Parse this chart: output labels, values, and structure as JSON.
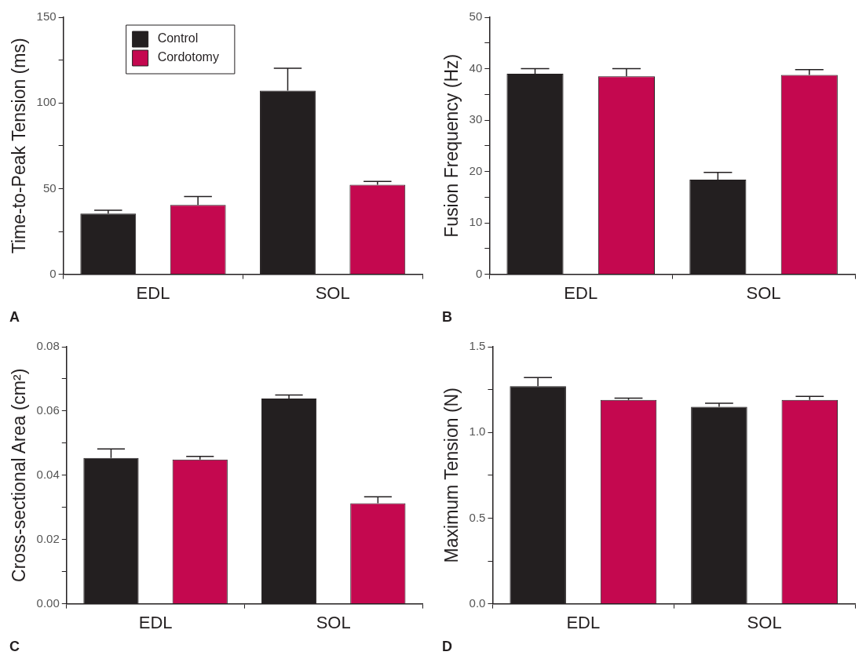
{
  "chart_data": [
    {
      "type": "bar",
      "ylabel": "Time-to-Peak Tension (ms)",
      "categories": [
        "EDL",
        "SOL"
      ],
      "legend": "top left",
      "annotations": [
        "A"
      ],
      "ylim": [
        0,
        150
      ],
      "yticks": [
        0,
        {
          "value": 25,
          "label": null
        },
        50,
        {
          "value": 75,
          "label": null
        },
        100,
        {
          "value": 125,
          "label": null
        },
        150
      ],
      "series": [
        {
          "name": "Control",
          "color": "#231f20",
          "values": [
            35.4,
            107.2
          ],
          "errors": [
            2,
            13
          ]
        },
        {
          "name": "Cordotomy",
          "color": "#c4084f",
          "values": [
            40.4,
            52.2
          ],
          "errors": [
            5,
            2
          ]
        }
      ]
    },
    {
      "type": "bar",
      "ylabel": "Fusion Frequency (Hz)",
      "categories": [
        "EDL",
        "SOL"
      ],
      "annotations": [
        "B"
      ],
      "ylim": [
        0,
        50
      ],
      "yticks": [
        0,
        {
          "value": 5,
          "label": null
        },
        10,
        {
          "value": 15,
          "label": null
        },
        20,
        {
          "value": 25,
          "label": null
        },
        30,
        {
          "value": 35,
          "label": null
        },
        40,
        {
          "value": 45,
          "label": null
        },
        50
      ],
      "series": [
        {
          "color": "#231f20",
          "values": [
            39.0,
            18.4
          ],
          "errors": [
            1,
            1.4
          ]
        },
        {
          "color": "#c4084f",
          "values": [
            38.5,
            38.8
          ],
          "errors": [
            1.5,
            1
          ]
        }
      ]
    },
    {
      "type": "bar",
      "ylabel": "Cross-sectional Area (cm²)",
      "categories": [
        "EDL",
        "SOL"
      ],
      "annotations": [
        "C"
      ],
      "ylim": [
        0,
        0.08
      ],
      "yticks": [
        {
          "value": 0,
          "label": "0.00"
        },
        {
          "value": 0.01,
          "label": null
        },
        0.02,
        {
          "value": 0.03,
          "label": null
        },
        0.04,
        {
          "value": 0.05,
          "label": null
        },
        0.06,
        {
          "value": 0.07,
          "label": null
        },
        0.08
      ],
      "series": [
        {
          "color": "#231f20",
          "values": [
            0.0454,
            0.0639
          ],
          "errors": [
            0.0028,
            0.0011
          ]
        },
        {
          "color": "#c4084f",
          "values": [
            0.0449,
            0.0313
          ],
          "errors": [
            0.001,
            0.002
          ]
        }
      ]
    },
    {
      "type": "bar",
      "ylabel": "Maximum Tension (N)",
      "categories": [
        "EDL",
        "SOL"
      ],
      "annotations": [
        "D"
      ],
      "ylim": [
        0,
        1.5
      ],
      "yticks": [
        {
          "value": 0,
          "label": "0.0"
        },
        {
          "value": 0.25,
          "label": null
        },
        0.5,
        {
          "value": 0.75,
          "label": null
        },
        {
          "value": 1,
          "label": "1.0"
        },
        {
          "value": 1.25,
          "label": null
        },
        1.5
      ],
      "series": [
        {
          "color": "#231f20",
          "values": [
            1.27,
            1.15
          ],
          "errors": [
            0.05,
            0.02
          ]
        },
        {
          "color": "#c4084f",
          "values": [
            1.19,
            1.19
          ],
          "errors": [
            0.01,
            0.02
          ]
        }
      ]
    }
  ]
}
